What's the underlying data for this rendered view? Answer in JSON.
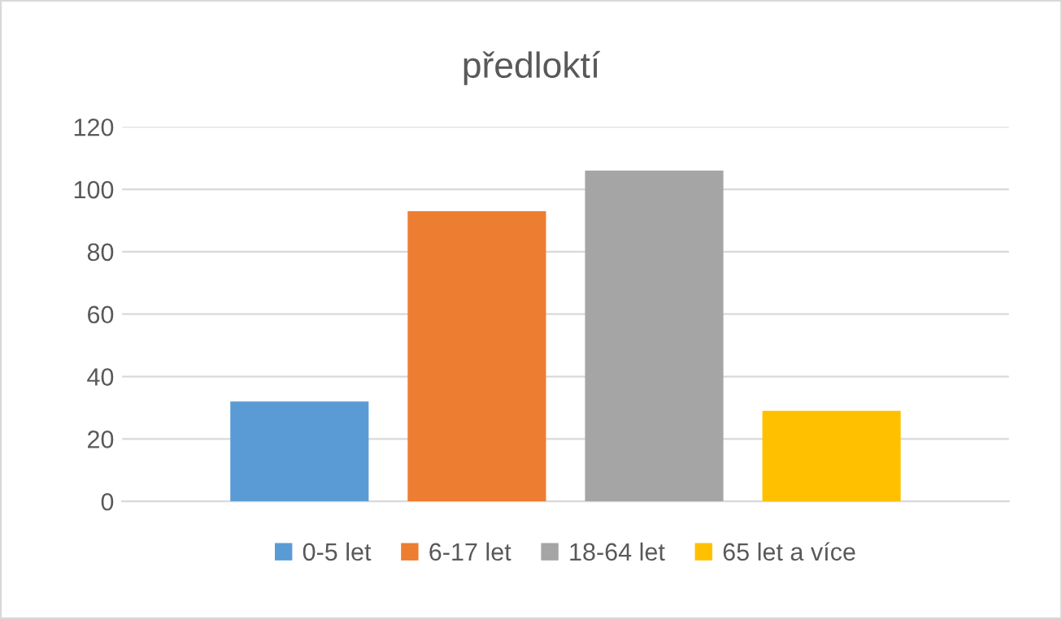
{
  "chart_data": {
    "type": "bar",
    "title": "předloktí",
    "categories": [
      null
    ],
    "series": [
      {
        "name": "0-5 let",
        "color": "#5b9bd5",
        "values": [
          32
        ]
      },
      {
        "name": "6-17 let",
        "color": "#ed7d31",
        "values": [
          93
        ]
      },
      {
        "name": "18-64 let",
        "color": "#a5a5a5",
        "values": [
          106
        ]
      },
      {
        "name": "65 let a více",
        "color": "#ffc000",
        "values": [
          29
        ]
      }
    ],
    "ylim": [
      0,
      120
    ],
    "yticks": [
      0,
      20,
      40,
      60,
      80,
      100,
      120
    ],
    "grid": "y",
    "legend": "bottom"
  }
}
